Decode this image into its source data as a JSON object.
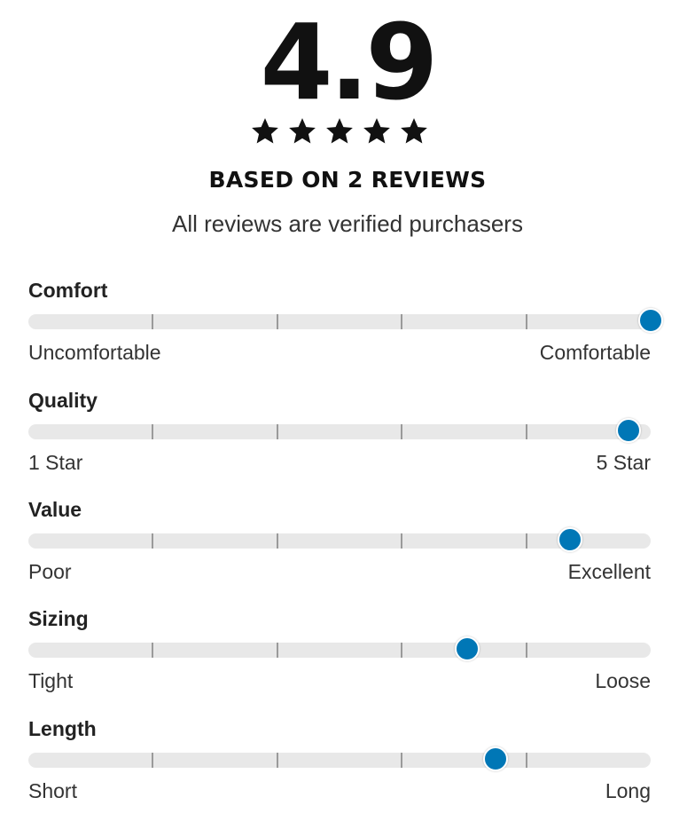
{
  "summary": {
    "score": "4.9",
    "stars": 5,
    "based_on": "BASED ON 2 REVIEWS",
    "verified_note": "All reviews are verified purchasers"
  },
  "accent_color": "#0077b6",
  "factors": [
    {
      "title": "Comfort",
      "left_label": "Uncomfortable",
      "right_label": "Comfortable",
      "value": 1.0
    },
    {
      "title": "Quality",
      "left_label": "1 Star",
      "right_label": "5 Star",
      "value": 0.965
    },
    {
      "title": "Value",
      "left_label": "Poor",
      "right_label": "Excellent",
      "value": 0.87
    },
    {
      "title": "Sizing",
      "left_label": "Tight",
      "right_label": "Loose",
      "value": 0.705
    },
    {
      "title": "Length",
      "left_label": "Short",
      "right_label": "Long",
      "value": 0.75
    }
  ]
}
